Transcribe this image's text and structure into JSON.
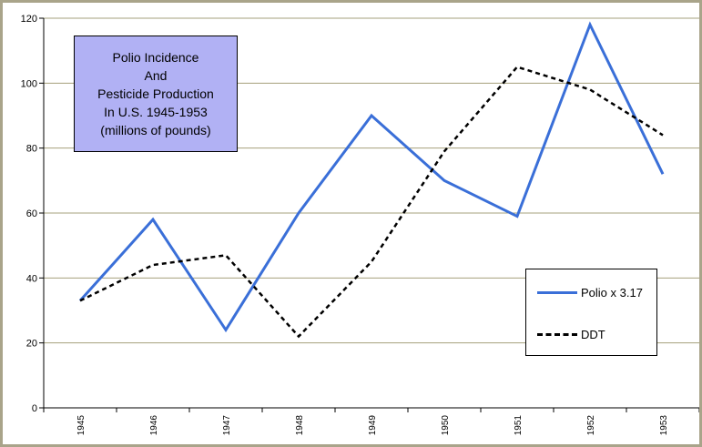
{
  "chart_data": {
    "type": "line",
    "title_lines": [
      "Polio Incidence",
      "And",
      "Pesticide Production",
      "In U.S. 1945-1953",
      "(millions of pounds)"
    ],
    "x": [
      "1945",
      "1946",
      "1947",
      "1948",
      "1949",
      "1950",
      "1951",
      "1952",
      "1953"
    ],
    "ylim": [
      0,
      120
    ],
    "yticks": [
      0,
      20,
      40,
      60,
      80,
      100,
      120
    ],
    "series": [
      {
        "name": "Polio x 3.17",
        "values": [
          33,
          58,
          24,
          60,
          90,
          70,
          59,
          118,
          72
        ],
        "color": "#3a6fd8",
        "style": "solid"
      },
      {
        "name": "DDT",
        "values": [
          33,
          44,
          47,
          22,
          45,
          79,
          105,
          98,
          84
        ],
        "color": "#000000",
        "style": "dashed"
      }
    ],
    "grid": true,
    "legend_position": "bottom-right",
    "title_position": "top-left",
    "frame_color": "#a9a48a",
    "title_box_color": "#b1b1f4"
  }
}
